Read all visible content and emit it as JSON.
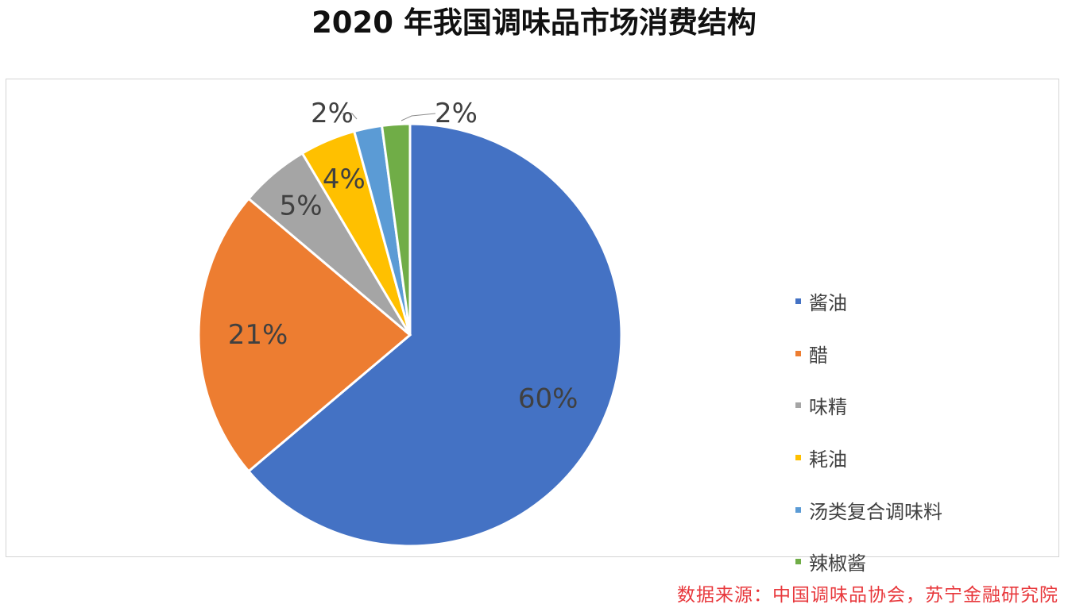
{
  "chart_data": {
    "type": "pie",
    "title": "2020 年我国调味品市场消费结构",
    "slices": [
      {
        "label": "酱油",
        "value": 60,
        "display": "60%",
        "color": "#4472c4"
      },
      {
        "label": "醋",
        "value": 21,
        "display": "21%",
        "color": "#ed7d31"
      },
      {
        "label": "味精",
        "value": 5,
        "display": "5%",
        "color": "#a5a5a5"
      },
      {
        "label": "耗油",
        "value": 4,
        "display": "4%",
        "color": "#ffc000"
      },
      {
        "label": "汤类复合调味料",
        "value": 2,
        "display": "2%",
        "color": "#5b9bd5"
      },
      {
        "label": "辣椒酱",
        "value": 2,
        "display": "2%",
        "color": "#70ad47"
      }
    ],
    "legend_position": "right"
  },
  "source_note": "数据来源：中国调味品协会，苏宁金融研究院"
}
